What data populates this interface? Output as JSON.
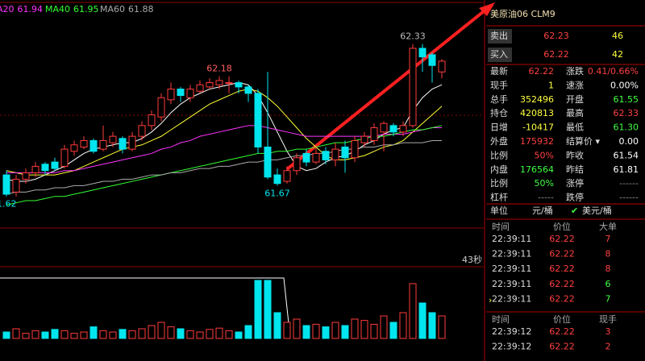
{
  "chart": {
    "type": "candlestick",
    "up_color": "#ff3b3b",
    "down_color": "#00e5ee",
    "ylim": [
      61.54,
      62.46
    ],
    "ma_legend": [
      {
        "label": "A20",
        "value": "61.94",
        "color": "#ff33ff"
      },
      {
        "label": "MA40",
        "value": "61.95",
        "color": "#33ff33"
      },
      {
        "label": "MA60",
        "value": "61.88",
        "color": "#aaaaaa"
      }
    ],
    "candles": {
      "open": [
        61.72,
        61.64,
        61.7,
        61.73,
        61.77,
        61.78,
        61.76,
        61.83,
        61.85,
        61.88,
        61.84,
        61.87,
        61.89,
        61.84,
        61.9,
        61.95,
        61.99,
        62.07,
        62.12,
        62.08,
        62.11,
        62.13,
        62.14,
        62.15,
        62.15,
        62.13,
        62.1,
        61.85,
        61.72,
        61.69,
        61.74,
        61.82,
        61.78,
        61.83,
        61.79,
        61.85,
        61.8,
        61.87,
        61.88,
        61.92,
        61.95,
        61.92,
        61.95,
        62.31,
        62.28,
        62.2
      ],
      "high": [
        61.74,
        61.72,
        61.75,
        61.78,
        61.78,
        61.8,
        61.86,
        61.88,
        61.9,
        61.89,
        61.95,
        61.92,
        61.9,
        61.92,
        61.97,
        62.02,
        62.1,
        62.15,
        62.13,
        62.14,
        62.16,
        62.17,
        62.18,
        62.18,
        62.16,
        62.14,
        62.12,
        62.2,
        61.75,
        61.76,
        61.82,
        61.84,
        61.85,
        61.85,
        61.87,
        61.88,
        61.9,
        61.92,
        61.96,
        61.97,
        61.96,
        61.97,
        62.33,
        62.33,
        62.29,
        62.26
      ],
      "low": [
        61.62,
        61.62,
        61.68,
        61.71,
        61.72,
        61.74,
        61.75,
        61.81,
        61.84,
        61.82,
        61.83,
        61.85,
        61.82,
        61.83,
        61.88,
        61.93,
        61.97,
        62.05,
        62.06,
        62.06,
        62.1,
        62.12,
        62.12,
        62.1,
        62.1,
        62.06,
        61.82,
        61.7,
        61.67,
        61.68,
        61.72,
        61.76,
        61.77,
        61.77,
        61.76,
        61.73,
        61.78,
        61.85,
        61.86,
        61.83,
        61.9,
        61.9,
        61.94,
        62.2,
        62.15,
        62.17
      ],
      "close": [
        61.63,
        61.7,
        61.73,
        61.76,
        61.74,
        61.75,
        61.84,
        61.86,
        61.88,
        61.83,
        61.88,
        61.9,
        61.84,
        61.9,
        61.95,
        62.0,
        62.08,
        62.12,
        62.09,
        62.12,
        62.14,
        62.15,
        62.16,
        62.15,
        62.13,
        62.1,
        61.85,
        61.71,
        61.68,
        61.74,
        61.8,
        61.78,
        61.82,
        61.79,
        61.84,
        61.8,
        61.88,
        61.9,
        61.94,
        61.96,
        61.92,
        61.95,
        62.31,
        62.27,
        62.23,
        62.25
      ]
    },
    "lines": [
      {
        "color": "#ffffff",
        "values": [
          61.7,
          61.69,
          61.69,
          61.7,
          61.72,
          61.74,
          61.76,
          61.79,
          61.82,
          61.84,
          61.85,
          61.86,
          61.87,
          61.87,
          61.89,
          61.92,
          61.96,
          62.01,
          62.05,
          62.08,
          62.1,
          62.12,
          62.13,
          62.14,
          62.15,
          62.14,
          62.09,
          62.01,
          61.92,
          61.83,
          61.76,
          61.74,
          61.75,
          61.78,
          61.8,
          61.81,
          61.83,
          61.86,
          61.88,
          61.91,
          61.93,
          61.94,
          62.02,
          62.08,
          62.12,
          62.14
        ]
      },
      {
        "color": "#ffff33",
        "values": [
          61.74,
          61.73,
          61.72,
          61.72,
          61.72,
          61.72,
          61.73,
          61.74,
          61.76,
          61.78,
          61.8,
          61.82,
          61.84,
          61.85,
          61.86,
          61.88,
          61.9,
          61.93,
          61.96,
          61.99,
          62.02,
          62.05,
          62.07,
          62.09,
          62.11,
          62.12,
          62.11,
          62.08,
          62.04,
          61.99,
          61.94,
          61.89,
          61.85,
          61.81,
          61.79,
          61.79,
          61.8,
          61.81,
          61.83,
          61.85,
          61.86,
          61.88,
          61.92,
          61.96,
          62.0,
          62.04
        ]
      },
      {
        "color": "#ff33ff",
        "values": [
          61.73,
          61.73,
          61.73,
          61.73,
          61.73,
          61.73,
          61.74,
          61.74,
          61.75,
          61.76,
          61.77,
          61.78,
          61.79,
          61.8,
          61.81,
          61.82,
          61.84,
          61.85,
          61.87,
          61.88,
          61.9,
          61.91,
          61.92,
          61.93,
          61.94,
          61.95,
          61.95,
          61.94,
          61.93,
          61.92,
          61.91,
          61.9,
          61.9,
          61.9,
          61.9,
          61.9,
          61.9,
          61.9,
          61.9,
          61.91,
          61.91,
          61.91,
          61.92,
          61.93,
          61.94,
          61.94
        ]
      },
      {
        "color": "#33ff33",
        "values": [
          61.58,
          61.59,
          61.6,
          61.6,
          61.61,
          61.62,
          61.62,
          61.63,
          61.64,
          61.65,
          61.66,
          61.67,
          61.68,
          61.69,
          61.7,
          61.71,
          61.72,
          61.73,
          61.74,
          61.75,
          61.76,
          61.77,
          61.78,
          61.79,
          61.8,
          61.81,
          61.82,
          61.82,
          61.83,
          61.83,
          61.84,
          61.84,
          61.85,
          61.86,
          61.87,
          61.87,
          61.88,
          61.89,
          61.9,
          61.9,
          61.91,
          61.92,
          61.93,
          61.93,
          61.94,
          61.95
        ]
      },
      {
        "color": "#aaaaaa",
        "values": [
          61.63,
          61.64,
          61.64,
          61.65,
          61.65,
          61.66,
          61.66,
          61.67,
          61.67,
          61.68,
          61.69,
          61.69,
          61.7,
          61.7,
          61.71,
          61.72,
          61.72,
          61.73,
          61.73,
          61.74,
          61.75,
          61.75,
          61.76,
          61.76,
          61.77,
          61.78,
          61.78,
          61.79,
          61.79,
          61.8,
          61.81,
          61.81,
          61.82,
          61.82,
          61.83,
          61.84,
          61.84,
          61.85,
          61.85,
          61.86,
          61.86,
          61.87,
          61.87,
          61.87,
          61.88,
          61.88
        ]
      }
    ],
    "annotations": [
      "62.33",
      "62.18",
      "61.67",
      "1.62"
    ],
    "volume": {
      "ylim": [
        0,
        100
      ],
      "values": [
        10,
        15,
        8,
        12,
        10,
        14,
        12,
        8,
        10,
        18,
        12,
        10,
        14,
        12,
        15,
        20,
        25,
        18,
        15,
        12,
        10,
        14,
        16,
        12,
        10,
        20,
        90,
        90,
        40,
        25,
        30,
        20,
        22,
        18,
        25,
        20,
        30,
        28,
        22,
        35,
        25,
        40,
        85,
        55,
        40,
        35
      ]
    },
    "timer": "43秒"
  },
  "panel": {
    "title": "美原油06  CLM9",
    "sell": {
      "label": "卖出",
      "price": "62.23",
      "qty": "46"
    },
    "buy": {
      "label": "买入",
      "price": "62.22",
      "qty": "42"
    },
    "quotes": [
      [
        {
          "text": "最新"
        },
        {
          "text": "62.22",
          "color": "#ff4040"
        },
        {
          "text": "涨跌"
        },
        {
          "text": "0.41/0.66%",
          "color": "#ff4040"
        }
      ],
      [
        {
          "text": "现手"
        },
        {
          "text": "1",
          "color": "#ffff40"
        },
        {
          "text": "速涨"
        },
        {
          "text": "0.00%",
          "color": "#ffffff"
        }
      ],
      [
        {
          "text": "总手"
        },
        {
          "text": "352496",
          "color": "#ffff40"
        },
        {
          "text": "开盘"
        },
        {
          "text": "61.55",
          "color": "#40ff40"
        }
      ],
      [
        {
          "text": "持仓"
        },
        {
          "text": "420813",
          "color": "#ffff40"
        },
        {
          "text": "最高"
        },
        {
          "text": "62.33",
          "color": "#ff4040"
        }
      ],
      [
        {
          "text": "日增"
        },
        {
          "text": "-10417",
          "color": "#ffff40"
        },
        {
          "text": "最低"
        },
        {
          "text": "61.30",
          "color": "#40ff40"
        }
      ],
      [
        {
          "text": "外盘"
        },
        {
          "text": "175932",
          "color": "#ff4040"
        },
        {
          "text": "结算价 ▾"
        },
        {
          "text": "0.00",
          "color": "#ffffff"
        }
      ],
      [
        {
          "text": "比例"
        },
        {
          "text": "50%",
          "color": "#ff4040"
        },
        {
          "text": "昨收"
        },
        {
          "text": "61.54",
          "color": "#ffffff"
        }
      ],
      [
        {
          "text": "内盘"
        },
        {
          "text": "176564",
          "color": "#40ff40"
        },
        {
          "text": "昨结"
        },
        {
          "text": "61.81",
          "color": "#ffffff"
        }
      ],
      [
        {
          "text": "比例"
        },
        {
          "text": "50%",
          "color": "#40ff40"
        },
        {
          "text": "涨停"
        },
        {
          "text": "------",
          "color": "#888888"
        }
      ],
      [
        {
          "text": "杠杆"
        },
        {
          "text": "-----",
          "color": "#888888"
        },
        {
          "text": "跌停"
        },
        {
          "text": "------",
          "color": "#888888"
        }
      ]
    ],
    "unit": {
      "label": "单位",
      "option1": "元/桶",
      "option2": "美元/桶"
    },
    "big_trades": {
      "headers": [
        "时间",
        "价位",
        "大单"
      ],
      "rows": [
        {
          "time": "22:39:11",
          "price": "62.22",
          "qty": "7",
          "color": "#ff4040"
        },
        {
          "time": "22:39:11",
          "price": "62.22",
          "qty": "8",
          "color": "#ff4040"
        },
        {
          "time": "22:39:11",
          "price": "62.22",
          "qty": "8",
          "color": "#ff4040"
        },
        {
          "time": "22:39:11",
          "price": "62.22",
          "qty": "6",
          "color": "#40ff40"
        },
        {
          "time": "22:39:11",
          "price": "62.22",
          "qty": "7",
          "color": "#40ff40"
        }
      ]
    },
    "ticks": {
      "headers": [
        "时间",
        "价位",
        "现手"
      ],
      "rows": [
        {
          "time": "22:39:12",
          "price": "62.22",
          "qty": "3",
          "color": "#ff4040"
        },
        {
          "time": "22:39:12",
          "price": "62.22",
          "qty": "2",
          "color": "#ff4040"
        }
      ]
    }
  }
}
